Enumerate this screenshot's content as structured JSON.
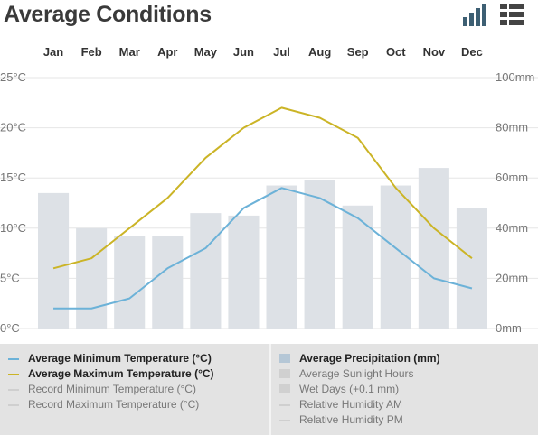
{
  "title": "Average Conditions",
  "view_buttons": [
    {
      "name": "chart-view-icon",
      "active": true
    },
    {
      "name": "table-view-icon",
      "active": false
    }
  ],
  "colors": {
    "min_temp": "#6cb2d8",
    "max_temp": "#cbb426",
    "bars": "#dde1e6",
    "grid": "#e6e6e6",
    "precip_swatch": "#b5c7d6"
  },
  "chart_data": {
    "type": "bar",
    "categories": [
      "Jan",
      "Feb",
      "Mar",
      "Apr",
      "May",
      "Jun",
      "Jul",
      "Aug",
      "Sep",
      "Oct",
      "Nov",
      "Dec"
    ],
    "y_left": {
      "ticks": [
        "0°C",
        "5°C",
        "10°C",
        "15°C",
        "20°C",
        "25°C"
      ],
      "min": 0,
      "max": 25
    },
    "y_right": {
      "ticks": [
        "0mm",
        "20mm",
        "40mm",
        "60mm",
        "80mm",
        "100mm"
      ],
      "min": 0,
      "max": 100
    },
    "series": [
      {
        "name": "Average Precipitation (mm)",
        "type": "bar",
        "axis": "right",
        "values": [
          54,
          40,
          37,
          37,
          46,
          45,
          57,
          59,
          49,
          57,
          64,
          48
        ]
      },
      {
        "name": "Average Minimum Temperature (°C)",
        "type": "line",
        "axis": "left",
        "values": [
          2,
          2,
          3,
          6,
          8,
          12,
          14,
          13,
          11,
          8,
          5,
          4
        ]
      },
      {
        "name": "Average Maximum Temperature (°C)",
        "type": "line",
        "axis": "left",
        "values": [
          6,
          7,
          10,
          13,
          17,
          20,
          22,
          21,
          19,
          14,
          10,
          7
        ]
      }
    ],
    "grid": true
  },
  "legend": {
    "left": [
      {
        "label": "Average Minimum Temperature (°C)",
        "active": true,
        "color": "#6cb2d8"
      },
      {
        "label": "Average Maximum Temperature (°C)",
        "active": true,
        "color": "#cbb426"
      },
      {
        "label": "Record Minimum Temperature (°C)",
        "active": false,
        "color": "#cfcfcf"
      },
      {
        "label": "Record Maximum Temperature (°C)",
        "active": false,
        "color": "#cfcfcf"
      }
    ],
    "right": [
      {
        "label": "Average Precipitation (mm)",
        "active": true,
        "color": "#b5c7d6"
      },
      {
        "label": "Average Sunlight Hours",
        "active": false,
        "color": "#d0d0d0"
      },
      {
        "label": "Wet Days (+0.1 mm)",
        "active": false,
        "color": "#d0d0d0"
      },
      {
        "label": "Relative Humidity AM",
        "active": false,
        "color": "#cfcfcf"
      },
      {
        "label": "Relative Humidity PM",
        "active": false,
        "color": "#cfcfcf"
      }
    ]
  }
}
